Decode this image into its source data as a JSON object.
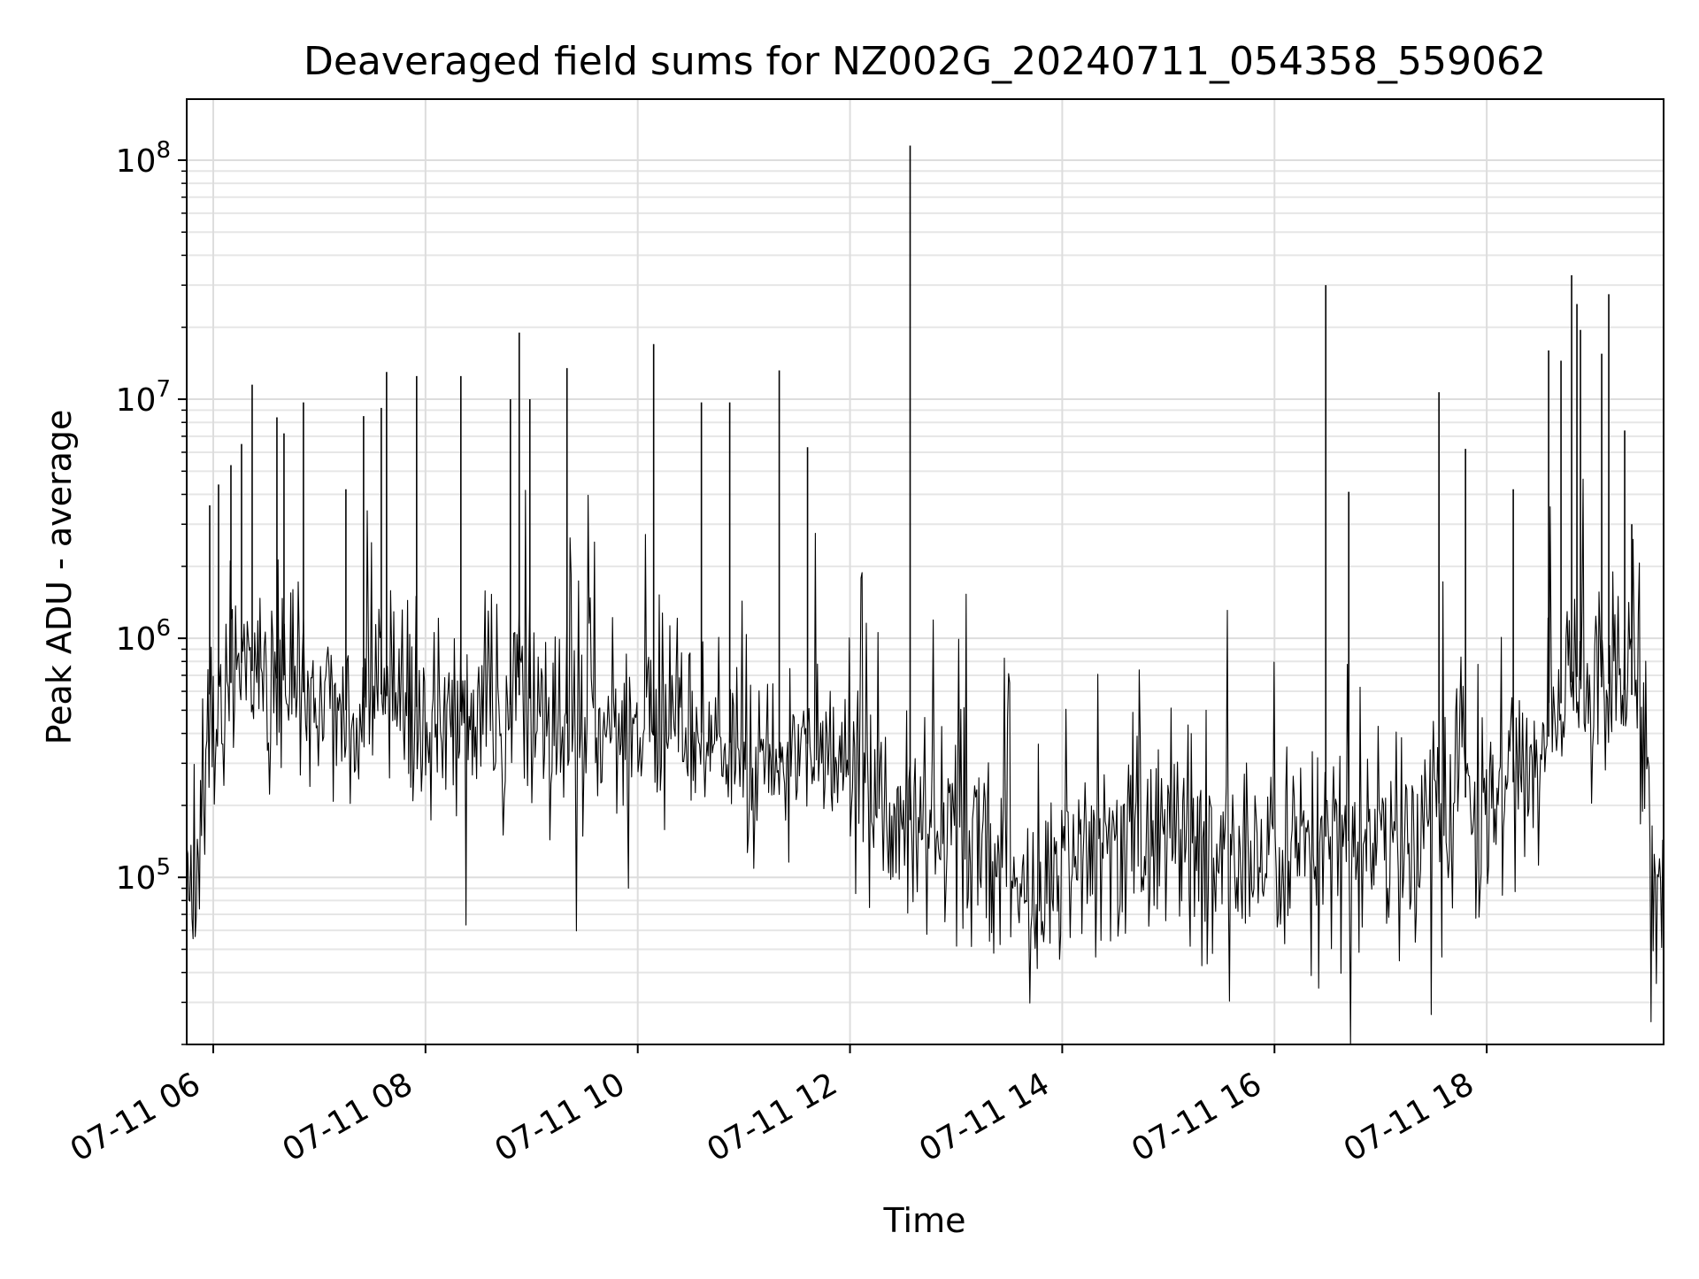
{
  "chart_data": {
    "type": "line",
    "title": "Deaveraged field sums for NZ002G_20240711_054358_559062",
    "xlabel": "Time",
    "ylabel": "Peak ADU - average",
    "x_range": [
      "2024-07-11T05:45",
      "2024-07-11T19:40"
    ],
    "y_scale": "log",
    "ylim": [
      20000,
      180000000
    ],
    "grid": true,
    "legend": "none",
    "line_color": "#000000",
    "x_ticks": [
      {
        "value": "2024-07-11T06:00",
        "label": "07-11 06"
      },
      {
        "value": "2024-07-11T08:00",
        "label": "07-11 08"
      },
      {
        "value": "2024-07-11T10:00",
        "label": "07-11 10"
      },
      {
        "value": "2024-07-11T12:00",
        "label": "07-11 12"
      },
      {
        "value": "2024-07-11T14:00",
        "label": "07-11 14"
      },
      {
        "value": "2024-07-11T16:00",
        "label": "07-11 16"
      },
      {
        "value": "2024-07-11T18:00",
        "label": "07-11 18"
      }
    ],
    "y_ticks": [
      {
        "value": 100000,
        "base": "10",
        "exp": "5"
      },
      {
        "value": 1000000,
        "base": "10",
        "exp": "6"
      },
      {
        "value": 10000000,
        "base": "10",
        "exp": "7"
      },
      {
        "value": 100000000,
        "base": "10",
        "exp": "8"
      }
    ],
    "series": [
      {
        "x": [
          "2024-07-11T05:45",
          "2024-07-11T05:49",
          "2024-07-11T05:52",
          "2024-07-11T05:55",
          "2024-07-11T05:57",
          "2024-07-11T06:00",
          "2024-07-11T06:05",
          "2024-07-11T06:10",
          "2024-07-11T06:15",
          "2024-07-11T06:20",
          "2024-07-11T06:25",
          "2024-07-11T06:30",
          "2024-07-11T06:40",
          "2024-07-11T06:50",
          "2024-07-11T07:00",
          "2024-07-11T07:15",
          "2024-07-11T07:30",
          "2024-07-11T07:45",
          "2024-07-11T08:00",
          "2024-07-11T08:15",
          "2024-07-11T08:30",
          "2024-07-11T08:45",
          "2024-07-11T08:55",
          "2024-07-11T09:00",
          "2024-07-11T09:15",
          "2024-07-11T09:30",
          "2024-07-11T09:45",
          "2024-07-11T10:00",
          "2024-07-11T10:15",
          "2024-07-11T10:30",
          "2024-07-11T10:45",
          "2024-07-11T11:00",
          "2024-07-11T11:15",
          "2024-07-11T11:30",
          "2024-07-11T11:45",
          "2024-07-11T12:00",
          "2024-07-11T12:15",
          "2024-07-11T12:30",
          "2024-07-11T12:35",
          "2024-07-11T12:45",
          "2024-07-11T13:00",
          "2024-07-11T13:15",
          "2024-07-11T13:30",
          "2024-07-11T13:40",
          "2024-07-11T13:45",
          "2024-07-11T14:00",
          "2024-07-11T14:15",
          "2024-07-11T14:30",
          "2024-07-11T14:45",
          "2024-07-11T15:00",
          "2024-07-11T15:15",
          "2024-07-11T15:30",
          "2024-07-11T15:45",
          "2024-07-11T16:00",
          "2024-07-11T16:15",
          "2024-07-11T16:30",
          "2024-07-11T16:45",
          "2024-07-11T17:00",
          "2024-07-11T17:15",
          "2024-07-11T17:30",
          "2024-07-11T17:45",
          "2024-07-11T18:00",
          "2024-07-11T18:15",
          "2024-07-11T18:30",
          "2024-07-11T18:40",
          "2024-07-11T18:50",
          "2024-07-11T19:00",
          "2024-07-11T19:10",
          "2024-07-11T19:20",
          "2024-07-11T19:25",
          "2024-07-11T19:30",
          "2024-07-11T19:35",
          "2024-07-11T19:40"
        ],
        "y": [
          70000,
          50000,
          120000,
          300000,
          600000,
          550000,
          700000,
          650000,
          800000,
          750000,
          700000,
          650000,
          700000,
          600000,
          550000,
          500000,
          600000,
          550000,
          500000,
          480000,
          520000,
          500000,
          600000,
          550000,
          450000,
          420000,
          400000,
          380000,
          400000,
          420000,
          380000,
          350000,
          300000,
          350000,
          380000,
          250000,
          200000,
          150000,
          180000,
          200000,
          150000,
          130000,
          120000,
          80000,
          60000,
          120000,
          130000,
          140000,
          120000,
          150000,
          140000,
          130000,
          120000,
          130000,
          120000,
          150000,
          140000,
          130000,
          150000,
          200000,
          220000,
          200000,
          250000,
          300000,
          500000,
          700000,
          600000,
          650000,
          600000,
          550000,
          350000,
          60000,
          120000
        ]
      }
    ],
    "spikes": [
      {
        "x": "2024-07-11T05:58",
        "y": 3600000
      },
      {
        "x": "2024-07-11T06:03",
        "y": 4400000
      },
      {
        "x": "2024-07-11T06:10",
        "y": 5300000
      },
      {
        "x": "2024-07-11T06:16",
        "y": 6500000
      },
      {
        "x": "2024-07-11T06:22",
        "y": 11500000
      },
      {
        "x": "2024-07-11T06:36",
        "y": 8400000
      },
      {
        "x": "2024-07-11T06:40",
        "y": 7200000
      },
      {
        "x": "2024-07-11T06:51",
        "y": 9700000
      },
      {
        "x": "2024-07-11T07:15",
        "y": 4200000
      },
      {
        "x": "2024-07-11T07:25",
        "y": 8500000
      },
      {
        "x": "2024-07-11T07:35",
        "y": 9200000
      },
      {
        "x": "2024-07-11T07:38",
        "y": 13000000
      },
      {
        "x": "2024-07-11T07:55",
        "y": 12500000
      },
      {
        "x": "2024-07-11T08:20",
        "y": 12500000
      },
      {
        "x": "2024-07-11T08:48",
        "y": 10000000
      },
      {
        "x": "2024-07-11T08:53",
        "y": 19000000
      },
      {
        "x": "2024-07-11T08:59",
        "y": 10000000
      },
      {
        "x": "2024-07-11T09:20",
        "y": 13500000
      },
      {
        "x": "2024-07-11T10:09",
        "y": 17000000
      },
      {
        "x": "2024-07-11T10:36",
        "y": 9700000
      },
      {
        "x": "2024-07-11T10:52",
        "y": 9700000
      },
      {
        "x": "2024-07-11T11:20",
        "y": 13200000
      },
      {
        "x": "2024-07-11T11:36",
        "y": 6300000
      },
      {
        "x": "2024-07-11T12:34",
        "y": 115000000
      },
      {
        "x": "2024-07-11T16:29",
        "y": 30000000
      },
      {
        "x": "2024-07-11T16:42",
        "y": 4100000
      },
      {
        "x": "2024-07-11T17:33",
        "y": 10700000
      },
      {
        "x": "2024-07-11T17:48",
        "y": 6200000
      },
      {
        "x": "2024-07-11T18:15",
        "y": 4200000
      },
      {
        "x": "2024-07-11T18:35",
        "y": 16000000
      },
      {
        "x": "2024-07-11T18:42",
        "y": 14500000
      },
      {
        "x": "2024-07-11T18:48",
        "y": 33000000
      },
      {
        "x": "2024-07-11T18:51",
        "y": 25000000
      },
      {
        "x": "2024-07-11T18:53",
        "y": 19500000
      },
      {
        "x": "2024-07-11T19:05",
        "y": 15500000
      },
      {
        "x": "2024-07-11T19:09",
        "y": 27500000
      },
      {
        "x": "2024-07-11T19:18",
        "y": 7400000
      },
      {
        "x": "2024-07-11T19:22",
        "y": 3000000
      }
    ]
  }
}
